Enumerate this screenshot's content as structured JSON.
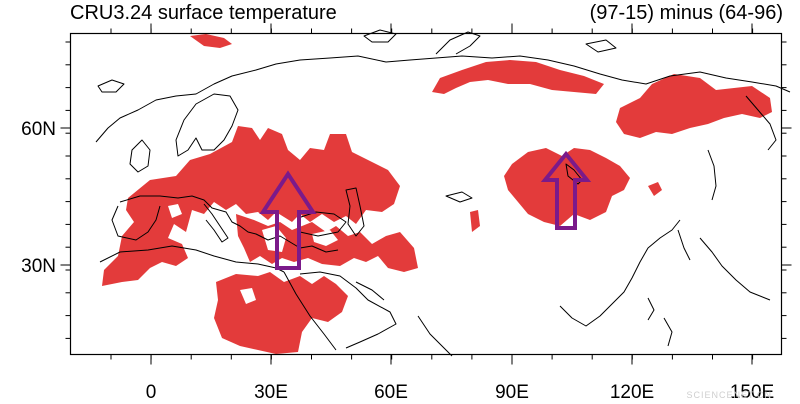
{
  "header": {
    "title_left": "CRU3.24 surface temperature",
    "title_right": "(97-15) minus (64-96)"
  },
  "map": {
    "lon_labels": [
      "0",
      "30E",
      "60E",
      "90E",
      "120E",
      "150E"
    ],
    "lat_labels": [
      "60N",
      "30N"
    ],
    "fill_color": "#e33b3b",
    "coast_color": "#000000",
    "arrow_color": "#7b1a8a",
    "arrow_direction": "up",
    "arrows": 2
  },
  "watermark": "SCIENCENET.CN"
}
